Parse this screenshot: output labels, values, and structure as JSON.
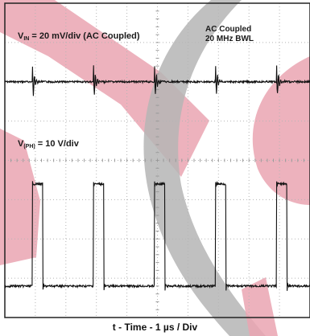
{
  "chart_data": {
    "type": "line",
    "title": "",
    "xlabel": "t - Time - 1 µs / Div",
    "divisions": {
      "x": 10,
      "y": 8
    },
    "grid": true,
    "annotations": [
      "AC Coupled",
      "20 MHz BWL"
    ],
    "series": [
      {
        "name": "VIN = 20 mV/div (AC Coupled)",
        "label_main": "V",
        "label_sub": "IN",
        "label_rest": " = 20 mV/div (AC Coupled)",
        "scale": "20 mV/div",
        "coupling": "AC Coupled",
        "baseline_div": 2.0,
        "spike_times_us": [
          0.9,
          2.9,
          4.9,
          6.9,
          8.9
        ],
        "spike_amplitude_div": 0.6
      },
      {
        "name": "V(PH) = 10 V/div",
        "label_main": "V",
        "label_sub": "(PH)",
        "label_rest": " = 10 V/div",
        "scale": "10 V/div",
        "low_div": 7.2,
        "high_div": 4.6,
        "rise_times_us": [
          0.9,
          2.9,
          4.9,
          6.9,
          8.9
        ],
        "high_duration_us": 0.35
      }
    ]
  },
  "colors": {
    "trace": "#111111",
    "grid": "#b5b5b5",
    "frame": "#222222",
    "watermark_red": "#e8a0ad",
    "watermark_gray": "#b0b0b0"
  }
}
